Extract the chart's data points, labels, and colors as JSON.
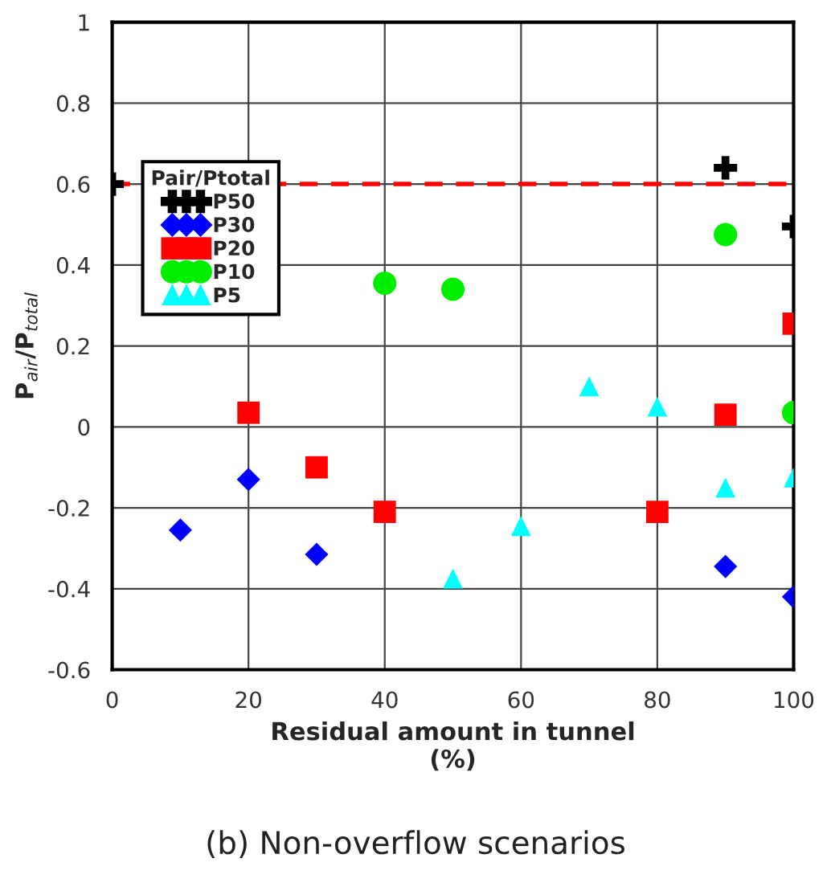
{
  "chart_data": {
    "type": "scatter",
    "xlabel": "Residual amount in tunnel\n(%)",
    "ylabel": "P$_{air}$/P$_{total}$",
    "legend_title": "Pair/Ptotal",
    "series": [
      {
        "name": "P50",
        "color": "#000000",
        "marker": "cross",
        "x": [
          0,
          90,
          100
        ],
        "values": [
          0.6,
          0.64,
          0.495
        ]
      },
      {
        "name": "P30",
        "color": "#0000ff",
        "marker": "diamond",
        "x": [
          10,
          20,
          30,
          90,
          100
        ],
        "values": [
          -0.255,
          -0.13,
          -0.315,
          -0.345,
          -0.42
        ]
      },
      {
        "name": "P20",
        "color": "#ff0000",
        "marker": "square",
        "x": [
          20,
          30,
          40,
          80,
          90,
          100
        ],
        "values": [
          0.035,
          -0.1,
          -0.21,
          -0.21,
          0.03,
          0.255
        ]
      },
      {
        "name": "P10",
        "color": "#00ee00",
        "marker": "circle",
        "x": [
          40,
          50,
          90,
          100
        ],
        "values": [
          0.355,
          0.34,
          0.475,
          0.035
        ]
      },
      {
        "name": "P5",
        "color": "#00ffff",
        "marker": "triangle",
        "x": [
          50,
          60,
          70,
          80,
          90,
          100
        ],
        "values": [
          -0.375,
          -0.245,
          0.1,
          0.05,
          -0.15,
          -0.125
        ]
      }
    ],
    "xlim": [
      0,
      100
    ],
    "xticks": [
      0,
      20,
      40,
      60,
      80,
      100
    ],
    "ylim": [
      -0.6,
      1
    ],
    "yticks": [
      -0.6,
      -0.4,
      -0.2,
      0,
      0.2,
      0.4,
      0.6,
      0.8,
      1
    ],
    "ref_lines": [
      {
        "axis": "y",
        "value": 0.6,
        "color": "#ff0000",
        "line_style": "dashed"
      }
    ],
    "grid": true,
    "legend": "top left",
    "annotations": [
      "(b) Non-overflow scenarios"
    ]
  }
}
